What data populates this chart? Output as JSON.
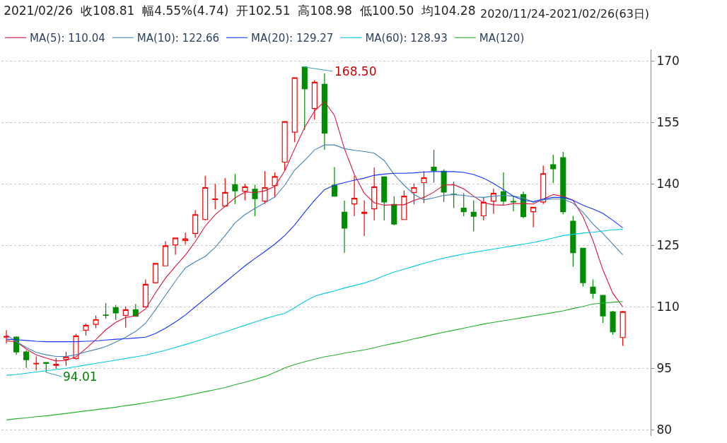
{
  "chart_data": {
    "type": "candlestick",
    "title": "2021/02/26  收108.81  幅4.55%(4.74)  开102.51  高108.98  低100.50  均104.28",
    "subtitle": "2020/11/24-2021/02/26(63日)",
    "categories": [
      null,
      null,
      null,
      null,
      null,
      null,
      null,
      null,
      null,
      null,
      null,
      null,
      null,
      null,
      null,
      null,
      null,
      null,
      null,
      null,
      null,
      null,
      null,
      null,
      null,
      null,
      null,
      null,
      null,
      null,
      null,
      null,
      null,
      null,
      null,
      null,
      null,
      null,
      null,
      null,
      null,
      null,
      null,
      null,
      null,
      null,
      null,
      null,
      null,
      null,
      null,
      null,
      null,
      null,
      null,
      null,
      null,
      null,
      null,
      null,
      null,
      null,
      null
    ],
    "ohlc": [
      [
        102.6,
        104.3,
        101.1,
        102.8
      ],
      [
        102.6,
        102.8,
        98.3,
        99.0
      ],
      [
        99.0,
        99.4,
        95.1,
        97.1
      ],
      [
        96.1,
        97.9,
        94.5,
        96.2
      ],
      [
        96.4,
        96.4,
        94.01,
        96.2
      ],
      [
        95.7,
        97.5,
        94.9,
        96.0
      ],
      [
        97.2,
        99.0,
        95.6,
        97.8
      ],
      [
        97.4,
        103.4,
        97.1,
        102.9
      ],
      [
        104.3,
        105.9,
        103.0,
        105.5
      ],
      [
        105.7,
        107.9,
        104.8,
        106.9
      ],
      [
        108.0,
        110.9,
        107.1,
        107.9
      ],
      [
        109.8,
        110.5,
        106.8,
        108.5
      ],
      [
        107.9,
        110.1,
        104.9,
        109.3
      ],
      [
        109.3,
        110.7,
        107.7,
        107.7
      ],
      [
        110.0,
        116.7,
        110.0,
        115.5
      ],
      [
        115.9,
        120.7,
        115.7,
        120.6
      ],
      [
        120.0,
        126.0,
        120.0,
        124.9
      ],
      [
        125.1,
        126.8,
        122.7,
        126.8
      ],
      [
        126.2,
        128.1,
        125.2,
        126.6
      ],
      [
        127.9,
        133.6,
        126.8,
        132.5
      ],
      [
        131.3,
        142.0,
        131.1,
        139.1
      ],
      [
        136.2,
        140.0,
        133.8,
        136.3
      ],
      [
        134.6,
        141.4,
        134.6,
        137.9
      ],
      [
        139.8,
        142.4,
        135.1,
        138.3
      ],
      [
        138.2,
        140.0,
        136.0,
        139.3
      ],
      [
        138.7,
        139.8,
        132.1,
        136.4
      ],
      [
        135.8,
        143.1,
        135.1,
        139.1
      ],
      [
        139.6,
        142.8,
        136.7,
        141.8
      ],
      [
        145.3,
        155.2,
        143.3,
        155.2
      ],
      [
        152.6,
        166.0,
        150.2,
        165.9
      ],
      [
        168.5,
        168.5,
        153.2,
        163.2
      ],
      [
        158.4,
        165.3,
        155.7,
        164.8
      ],
      [
        164.3,
        167.0,
        148.3,
        152.4
      ],
      [
        139.7,
        144.1,
        137.0,
        137.0
      ],
      [
        133.1,
        135.9,
        123.2,
        129.2
      ],
      [
        135.1,
        142.0,
        132.1,
        136.5
      ],
      [
        132.8,
        136.0,
        127.3,
        133.1
      ],
      [
        133.9,
        144.0,
        131.1,
        139.3
      ],
      [
        141.7,
        141.7,
        131.1,
        135.6
      ],
      [
        135.0,
        137.0,
        129.9,
        130.2
      ],
      [
        131.3,
        138.4,
        131.3,
        137.0
      ],
      [
        137.9,
        140.1,
        135.0,
        139.1
      ],
      [
        140.3,
        143.1,
        135.3,
        141.5
      ],
      [
        144.1,
        148.3,
        140.3,
        143.2
      ],
      [
        143.1,
        143.6,
        135.6,
        138.0
      ],
      [
        137.5,
        140.5,
        134.1,
        137.4
      ],
      [
        134.1,
        137.7,
        132.1,
        133.2
      ],
      [
        133.1,
        136.0,
        128.4,
        132.1
      ],
      [
        132.2,
        136.7,
        131.1,
        135.5
      ],
      [
        135.8,
        138.8,
        132.7,
        137.7
      ],
      [
        138.1,
        142.8,
        134.8,
        135.8
      ],
      [
        135.7,
        137.0,
        133.3,
        135.6
      ],
      [
        137.4,
        138.1,
        131.6,
        132.0
      ],
      [
        133.2,
        134.3,
        129.4,
        134.3
      ],
      [
        135.6,
        144.5,
        135.1,
        142.5
      ],
      [
        144.7,
        147.1,
        140.2,
        143.7
      ],
      [
        146.4,
        147.8,
        132.6,
        133.2
      ],
      [
        130.9,
        132.2,
        119.8,
        123.2
      ],
      [
        124.3,
        124.3,
        114.9,
        115.9
      ],
      [
        114.8,
        116.7,
        112.0,
        113.3
      ],
      [
        112.8,
        112.8,
        106.1,
        107.8
      ],
      [
        108.8,
        109.0,
        103.2,
        103.9
      ],
      [
        102.51,
        108.98,
        100.5,
        108.81
      ]
    ],
    "colors": [
      "#ff0000",
      "#008c00",
      "#008c00",
      "#ff0000",
      "#008c00",
      "#ff0000",
      "#ff0000",
      "#ff0000",
      "#ff0000",
      "#ff0000",
      "#008c00",
      "#008c00",
      "#ff0000",
      "#008c00",
      "#ff0000",
      "#ff0000",
      "#ff0000",
      "#ff0000",
      "#ff0000",
      "#ff0000",
      "#ff0000",
      "#ff0000",
      "#ff0000",
      "#008c00",
      "#ff0000",
      "#008c00",
      "#ff0000",
      "#ff0000",
      "#ff0000",
      "#ff0000",
      "#008c00",
      "#ff0000",
      "#008c00",
      "#008c00",
      "#008c00",
      "#ff0000",
      "#ff0000",
      "#ff0000",
      "#008c00",
      "#008c00",
      "#ff0000",
      "#ff0000",
      "#ff0000",
      "#008c00",
      "#008c00",
      "#008c00",
      "#008c00",
      "#008c00",
      "#ff0000",
      "#ff0000",
      "#008c00",
      "#008c00",
      "#008c00",
      "#ff0000",
      "#ff0000",
      "#008c00",
      "#008c00",
      "#008c00",
      "#008c00",
      "#008c00",
      "#008c00",
      "#008c00",
      "#ff0000"
    ],
    "series": [
      {
        "type": "line",
        "name": "MA(5): 110.04",
        "color": "#dc143c",
        "values": [
          101.7,
          101.5,
          99.7,
          98.3,
          97.5,
          96.8,
          96.9,
          97.8,
          99.8,
          102.0,
          104.4,
          106.2,
          107.4,
          107.8,
          109.5,
          113.4,
          117.0,
          119.9,
          122.6,
          125.9,
          129.7,
          132.5,
          134.5,
          136.6,
          138.0,
          137.9,
          138.3,
          139.4,
          143.2,
          148.6,
          153.8,
          157.8,
          160.1,
          156.7,
          148.6,
          142.3,
          137.7,
          135.4,
          134.8,
          134.9,
          134.9,
          136.0,
          136.7,
          138.0,
          139.7,
          139.8,
          138.8,
          137.0,
          135.4,
          134.9,
          134.8,
          135.2,
          135.2,
          135.1,
          136.3,
          137.4,
          137.0,
          136.0,
          132.0,
          126.2,
          119.0,
          113.3,
          110.0
        ]
      },
      {
        "type": "line",
        "name": "MA(10): 122.66",
        "color": "#4682b4",
        "values": [
          103.2,
          101.5,
          100.1,
          98.9,
          98.3,
          97.9,
          97.9,
          98.3,
          99.0,
          99.6,
          100.3,
          101.4,
          102.6,
          104.0,
          106.0,
          109.3,
          112.8,
          116.3,
          119.5,
          121.0,
          122.3,
          124.5,
          127.4,
          130.5,
          132.5,
          134.0,
          135.4,
          136.8,
          139.7,
          143.4,
          145.7,
          148.3,
          149.5,
          149.5,
          148.6,
          148.2,
          147.9,
          147.5,
          145.7,
          142.3,
          139.7,
          137.4,
          136.1,
          136.6,
          137.2,
          137.4,
          137.2,
          136.8,
          136.7,
          137.0,
          137.2,
          137.0,
          136.6,
          135.5,
          136.1,
          136.3,
          136.3,
          135.3,
          133.1,
          130.2,
          127.9,
          125.3,
          122.7
        ]
      },
      {
        "type": "line",
        "name": "MA(20): 129.27",
        "color": "#1432ff",
        "values": [
          102.1,
          102.0,
          101.8,
          101.6,
          101.5,
          101.5,
          101.5,
          101.5,
          101.6,
          101.7,
          101.9,
          102.1,
          102.2,
          102.4,
          102.6,
          103.5,
          104.8,
          106.3,
          108.0,
          110.0,
          112.0,
          114.0,
          116.0,
          118.0,
          120.0,
          121.8,
          123.5,
          125.3,
          127.4,
          130.0,
          133.1,
          136.0,
          138.6,
          139.7,
          140.3,
          140.9,
          141.4,
          142.1,
          142.4,
          142.6,
          142.6,
          142.7,
          142.9,
          143.0,
          143.0,
          143.0,
          142.8,
          142.3,
          141.4,
          140.1,
          138.6,
          137.0,
          136.0,
          135.7,
          136.3,
          136.7,
          136.7,
          136.0,
          134.8,
          133.9,
          132.8,
          131.1,
          129.3
        ]
      },
      {
        "type": "line",
        "name": "MA(60): 128.93",
        "color": "#00c8e6",
        "values": [
          93.3,
          93.5,
          93.8,
          94.1,
          94.4,
          94.7,
          95.0,
          95.4,
          95.8,
          96.2,
          96.6,
          97.0,
          97.4,
          97.8,
          98.2,
          98.8,
          99.4,
          100.1,
          100.8,
          101.5,
          102.3,
          103.1,
          103.9,
          104.7,
          105.5,
          106.3,
          107.1,
          107.8,
          108.4,
          109.8,
          111.3,
          112.6,
          113.3,
          113.9,
          114.6,
          115.2,
          115.8,
          116.6,
          117.6,
          118.5,
          119.2,
          119.9,
          120.6,
          121.3,
          121.9,
          122.4,
          122.9,
          123.3,
          123.7,
          124.1,
          124.5,
          124.9,
          125.3,
          125.7,
          126.2,
          126.8,
          127.4,
          127.7,
          128.0,
          128.2,
          128.5,
          128.8,
          128.9
        ]
      },
      {
        "type": "line",
        "name": "MA(120)",
        "color": "#22b22a",
        "values": [
          82.4,
          82.7,
          82.9,
          83.2,
          83.4,
          83.7,
          84.0,
          84.3,
          84.6,
          84.9,
          85.2,
          85.5,
          85.9,
          86.2,
          86.6,
          87.0,
          87.4,
          87.8,
          88.3,
          88.8,
          89.3,
          89.8,
          90.3,
          91.0,
          91.6,
          92.3,
          93.0,
          94.0,
          95.1,
          95.9,
          96.6,
          97.2,
          97.8,
          98.2,
          98.7,
          99.1,
          99.5,
          100.0,
          100.6,
          101.1,
          101.6,
          102.2,
          102.7,
          103.3,
          103.8,
          104.3,
          104.8,
          105.3,
          105.8,
          106.2,
          106.6,
          107.0,
          107.4,
          107.8,
          108.2,
          108.6,
          109.0,
          109.6,
          110.1,
          110.7,
          110.9,
          111.1,
          111.3
        ]
      }
    ],
    "annotations": [
      "168.50",
      "94.01"
    ],
    "ylim": [
      78.5,
      172.8
    ],
    "yticks": [
      80,
      95,
      110,
      125,
      140,
      155,
      170
    ],
    "grid": "y",
    "legend": "top left",
    "tick_labels": "y"
  }
}
